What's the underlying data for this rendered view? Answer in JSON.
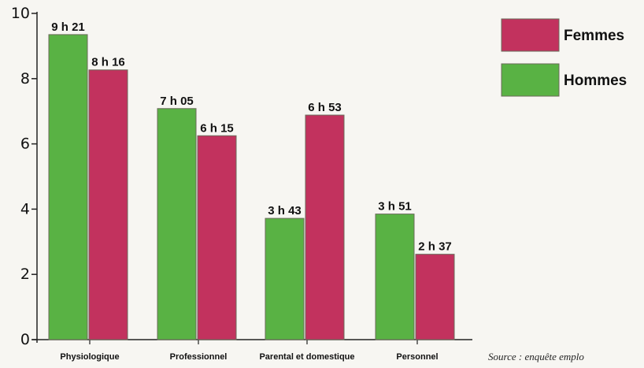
{
  "chart_data": {
    "type": "bar",
    "categories": [
      "Physiologique",
      "Professionnel",
      "Parental et domestique",
      "Personnel"
    ],
    "series": [
      {
        "name": "Hommes",
        "color": "#59b244",
        "values": [
          9.35,
          7.083,
          3.717,
          3.85
        ],
        "labels": [
          "9 h 21",
          "7 h 05",
          "3 h 43",
          "3 h 51"
        ]
      },
      {
        "name": "Femmes",
        "color": "#c2325e",
        "values": [
          8.267,
          6.25,
          6.883,
          2.617
        ],
        "labels": [
          "8 h 16",
          "6 h 15",
          "6 h 53",
          "2 h 37"
        ]
      }
    ],
    "ylim": [
      0,
      10
    ],
    "yticks": [
      "0",
      "2",
      "4",
      "6",
      "8",
      "10"
    ],
    "title": "",
    "xlabel": "",
    "ylabel": "",
    "grid": false,
    "legend": {
      "position": "top-right",
      "entries": [
        {
          "label": "Femmes",
          "color": "#c2325e"
        },
        {
          "label": "Hommes",
          "color": "#59b244"
        }
      ]
    },
    "source": "Source : enquête emplo"
  }
}
